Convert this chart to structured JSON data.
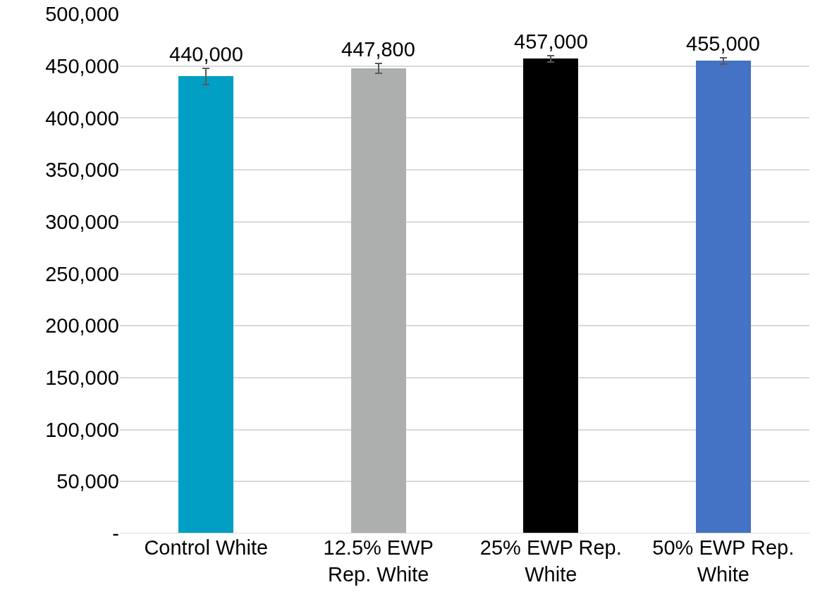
{
  "chart_data": {
    "type": "bar",
    "categories": [
      "Control White",
      "12.5% EWP Rep. White",
      "25% EWP Rep. White",
      "50% EWP Rep. White"
    ],
    "values": [
      440000,
      447800,
      457000,
      455000
    ],
    "colors": [
      "#009fc3",
      "#adafae",
      "#000000",
      "#4472c4"
    ],
    "errors": [
      7500,
      5000,
      3000,
      3000
    ],
    "value_labels": [
      "440,000",
      "447,800",
      "457,000",
      "455,000"
    ],
    "ylim": [
      0,
      500000
    ],
    "yticks": [
      {
        "value": 0,
        "label": "-"
      },
      {
        "value": 50000,
        "label": "50,000"
      },
      {
        "value": 100000,
        "label": "100,000"
      },
      {
        "value": 150000,
        "label": "150,000"
      },
      {
        "value": 200000,
        "label": "200,000"
      },
      {
        "value": 250000,
        "label": "250,000"
      },
      {
        "value": 300000,
        "label": "300,000"
      },
      {
        "value": 350000,
        "label": "350,000"
      },
      {
        "value": 400000,
        "label": "400,000"
      },
      {
        "value": 450000,
        "label": "450,000"
      },
      {
        "value": 500000,
        "label": "500,000"
      }
    ],
    "grid": "y"
  }
}
